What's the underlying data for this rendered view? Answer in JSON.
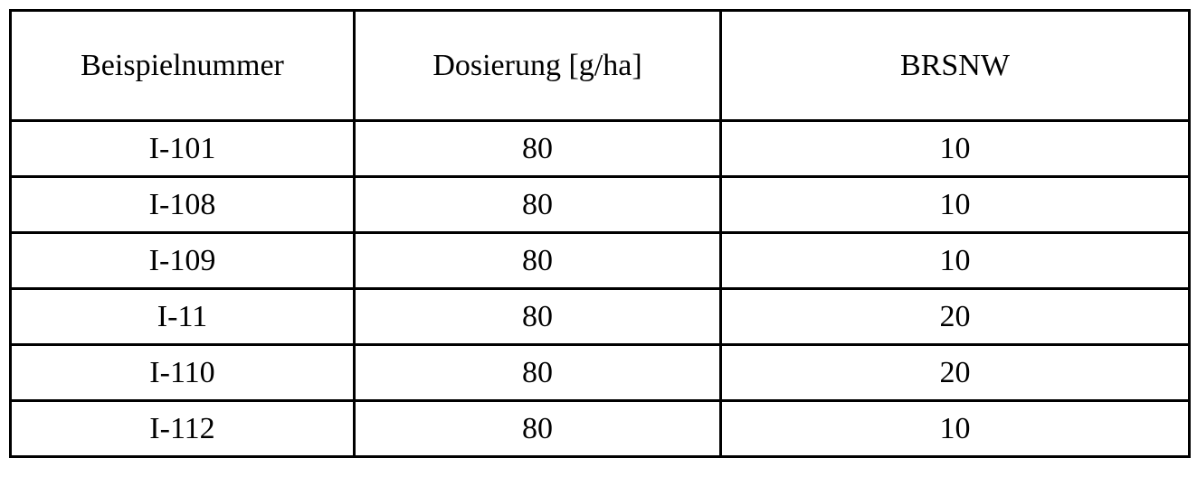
{
  "colors": {
    "border": "#000000",
    "background": "#ffffff",
    "text": "#000000"
  },
  "table": {
    "headers": [
      "Beispielnummer",
      "Dosierung [g/ha]",
      "BRSNW"
    ],
    "rows": [
      [
        "I-101",
        "80",
        "10"
      ],
      [
        "I-108",
        "80",
        "10"
      ],
      [
        "I-109",
        "80",
        "10"
      ],
      [
        "I-11",
        "80",
        "20"
      ],
      [
        "I-110",
        "80",
        "20"
      ],
      [
        "I-112",
        "80",
        "10"
      ]
    ]
  }
}
